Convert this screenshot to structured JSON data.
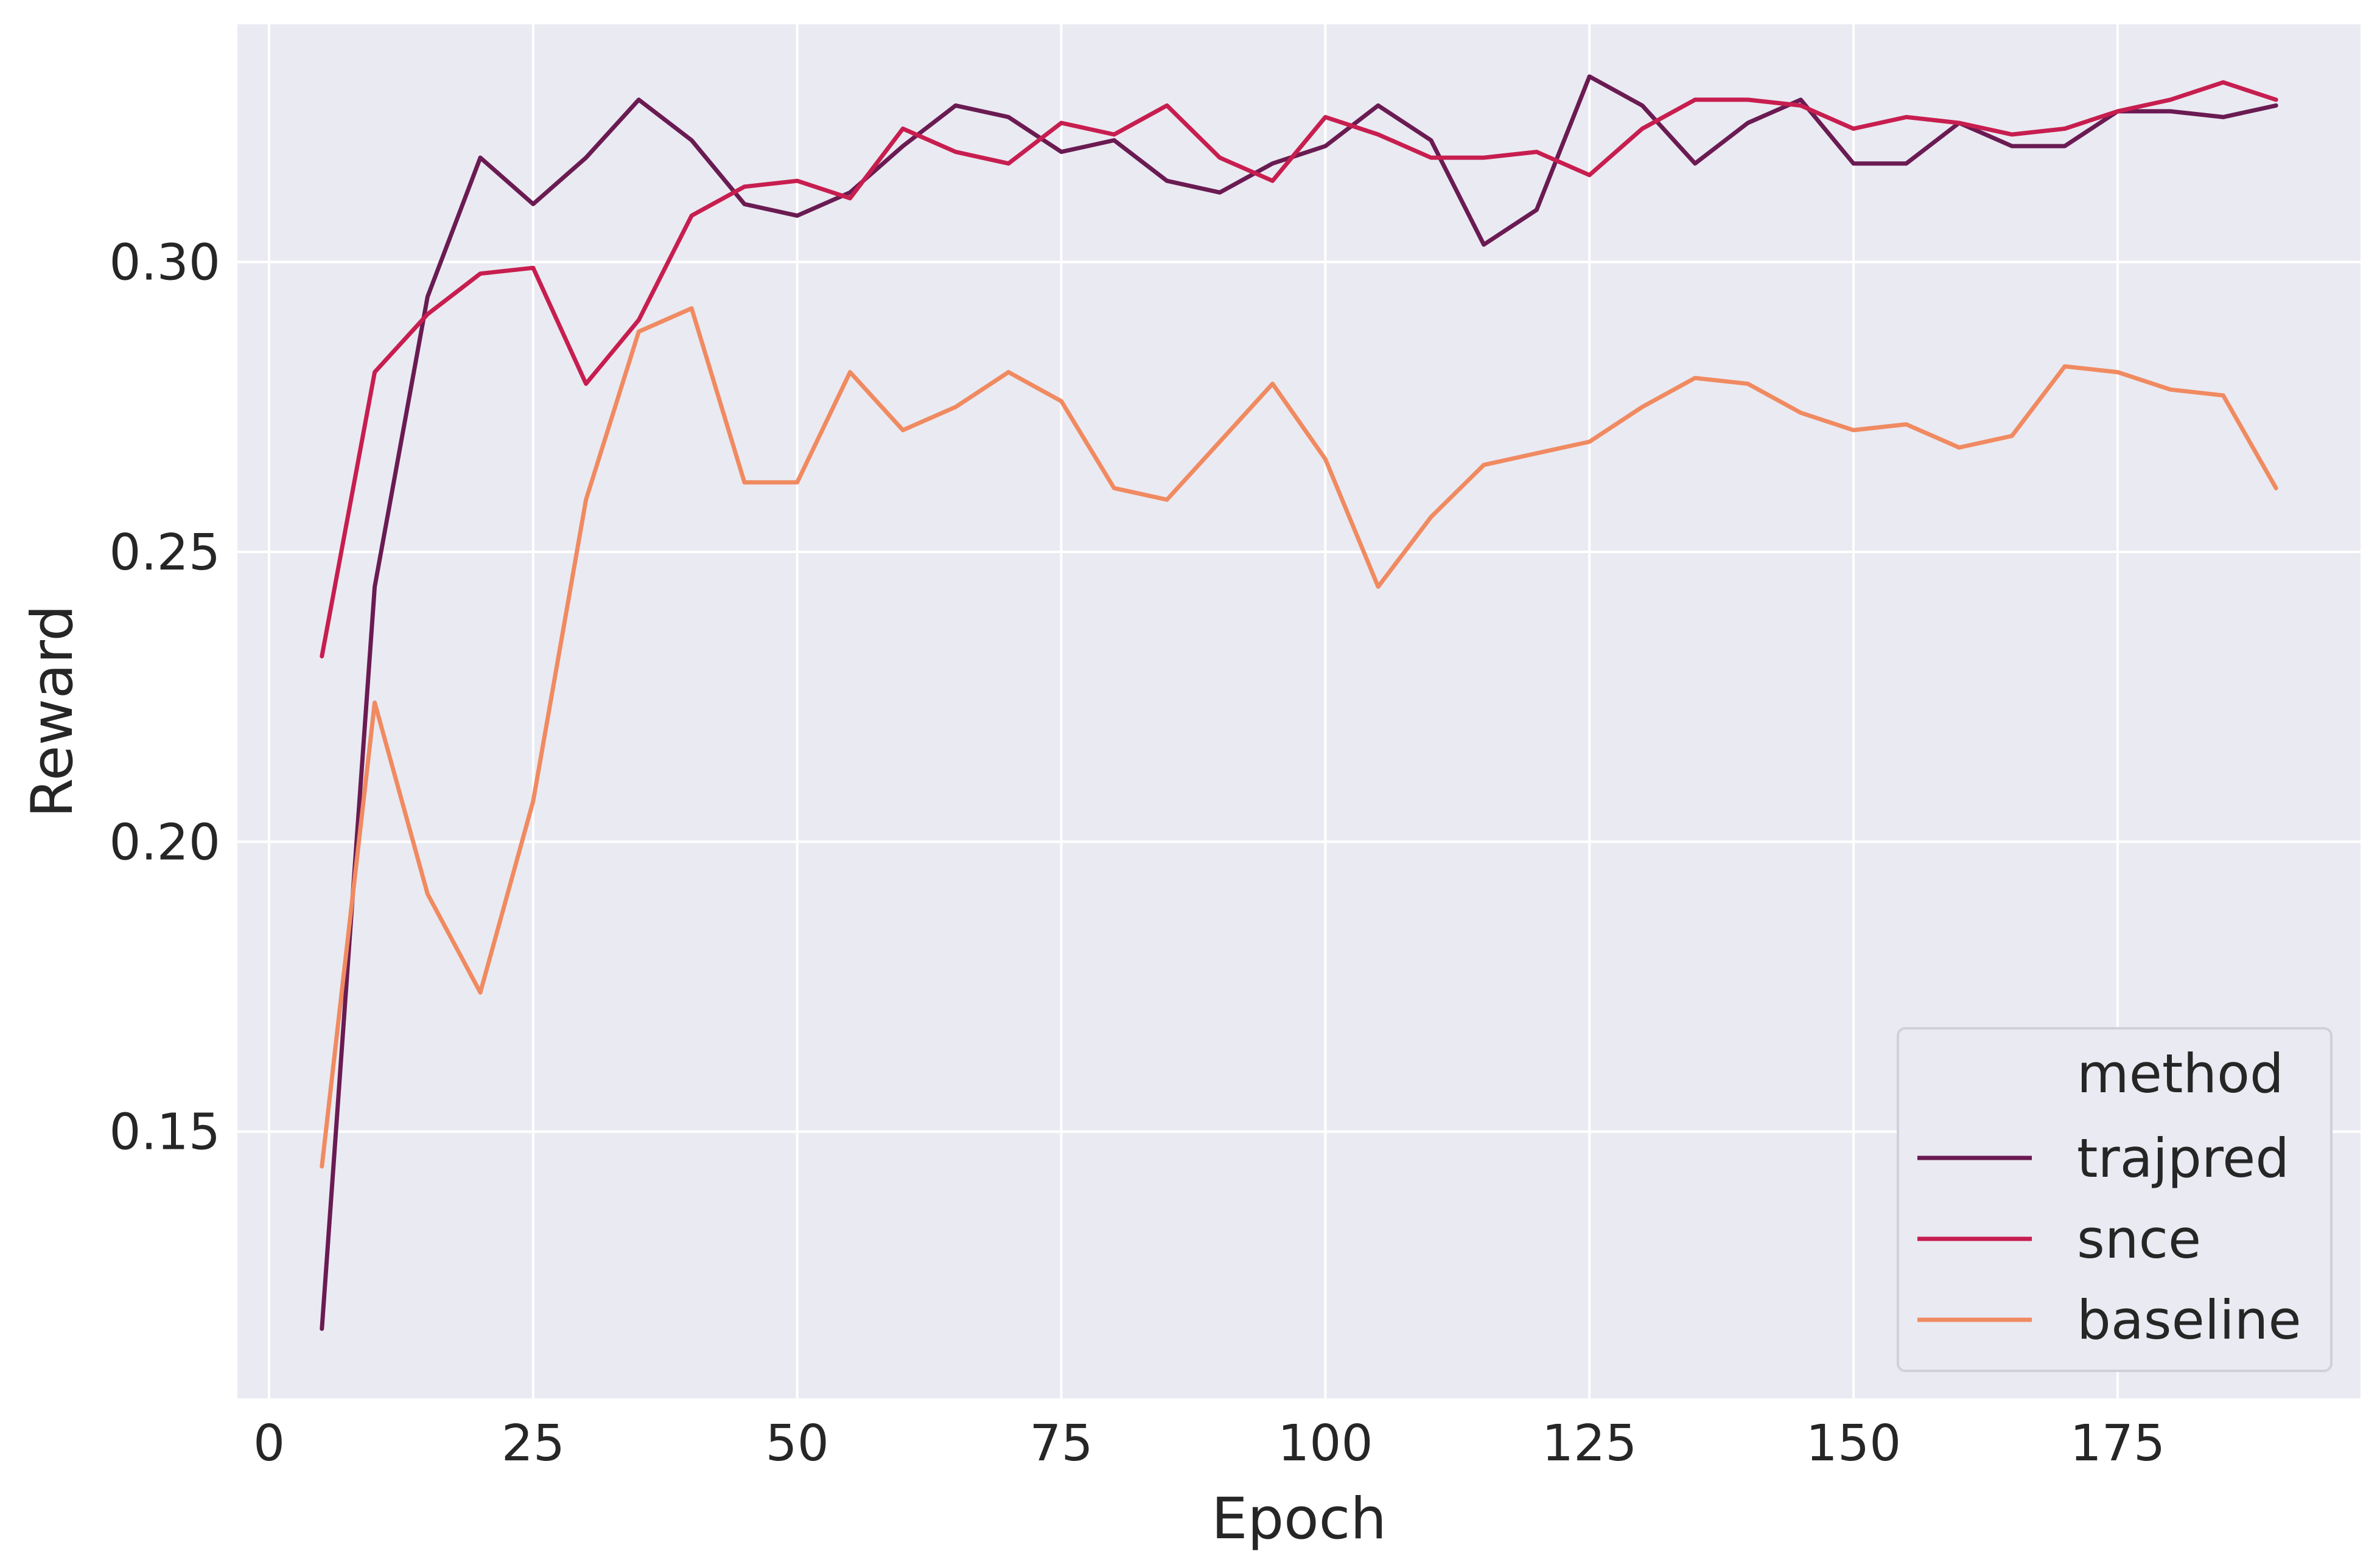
{
  "chart_data": {
    "type": "line",
    "title": "",
    "xlabel": "Epoch",
    "ylabel": "Reward",
    "xlim": [
      -3,
      198
    ],
    "ylim": [
      0.104,
      0.341
    ],
    "xticks": [
      0,
      25,
      50,
      75,
      100,
      125,
      150,
      175
    ],
    "xtick_labels": [
      "0",
      "25",
      "50",
      "75",
      "100",
      "125",
      "150",
      "175"
    ],
    "yticks": [
      0.15,
      0.2,
      0.25,
      0.3
    ],
    "ytick_labels": [
      "0.15",
      "0.20",
      "0.25",
      "0.30"
    ],
    "grid": true,
    "background": "#eaeaf2",
    "legend": {
      "title": "method",
      "placement": "lower-right"
    },
    "x": [
      5,
      10,
      15,
      20,
      25,
      30,
      35,
      40,
      45,
      50,
      55,
      60,
      65,
      70,
      75,
      80,
      85,
      90,
      95,
      100,
      105,
      110,
      115,
      120,
      125,
      130,
      135,
      140,
      145,
      150,
      155,
      160,
      165,
      170,
      175,
      180,
      185,
      190
    ],
    "series": [
      {
        "name": "trajpred",
        "color": "#6a1b52",
        "values": [
          0.116,
          0.244,
          0.294,
          0.318,
          0.31,
          0.318,
          0.328,
          0.321,
          0.31,
          0.308,
          0.312,
          0.32,
          0.327,
          0.325,
          0.319,
          0.321,
          0.314,
          0.312,
          0.317,
          0.32,
          0.327,
          0.321,
          0.303,
          0.309,
          0.332,
          0.327,
          0.317,
          0.324,
          0.328,
          0.317,
          0.317,
          0.324,
          0.32,
          0.32,
          0.326,
          0.326,
          0.325,
          0.327
        ]
      },
      {
        "name": "snce",
        "color": "#c71e4f",
        "values": [
          0.232,
          0.281,
          0.291,
          0.298,
          0.299,
          0.279,
          0.29,
          0.308,
          0.313,
          0.314,
          0.311,
          0.323,
          0.319,
          0.317,
          0.324,
          0.322,
          0.327,
          0.318,
          0.314,
          0.325,
          0.322,
          0.318,
          0.318,
          0.319,
          0.315,
          0.323,
          0.328,
          0.328,
          0.327,
          0.323,
          0.325,
          0.324,
          0.322,
          0.323,
          0.326,
          0.328,
          0.331,
          0.328
        ]
      },
      {
        "name": "baseline",
        "color": "#f08a61",
        "values": [
          0.144,
          0.224,
          0.191,
          0.174,
          0.207,
          0.259,
          0.288,
          0.292,
          0.262,
          0.262,
          0.281,
          0.271,
          0.275,
          0.281,
          0.276,
          0.261,
          0.259,
          0.269,
          0.279,
          0.266,
          0.244,
          0.256,
          0.265,
          0.267,
          0.269,
          0.275,
          0.28,
          0.279,
          0.274,
          0.271,
          0.272,
          0.268,
          0.27,
          0.282,
          0.281,
          0.278,
          0.277,
          0.261
        ]
      }
    ]
  }
}
